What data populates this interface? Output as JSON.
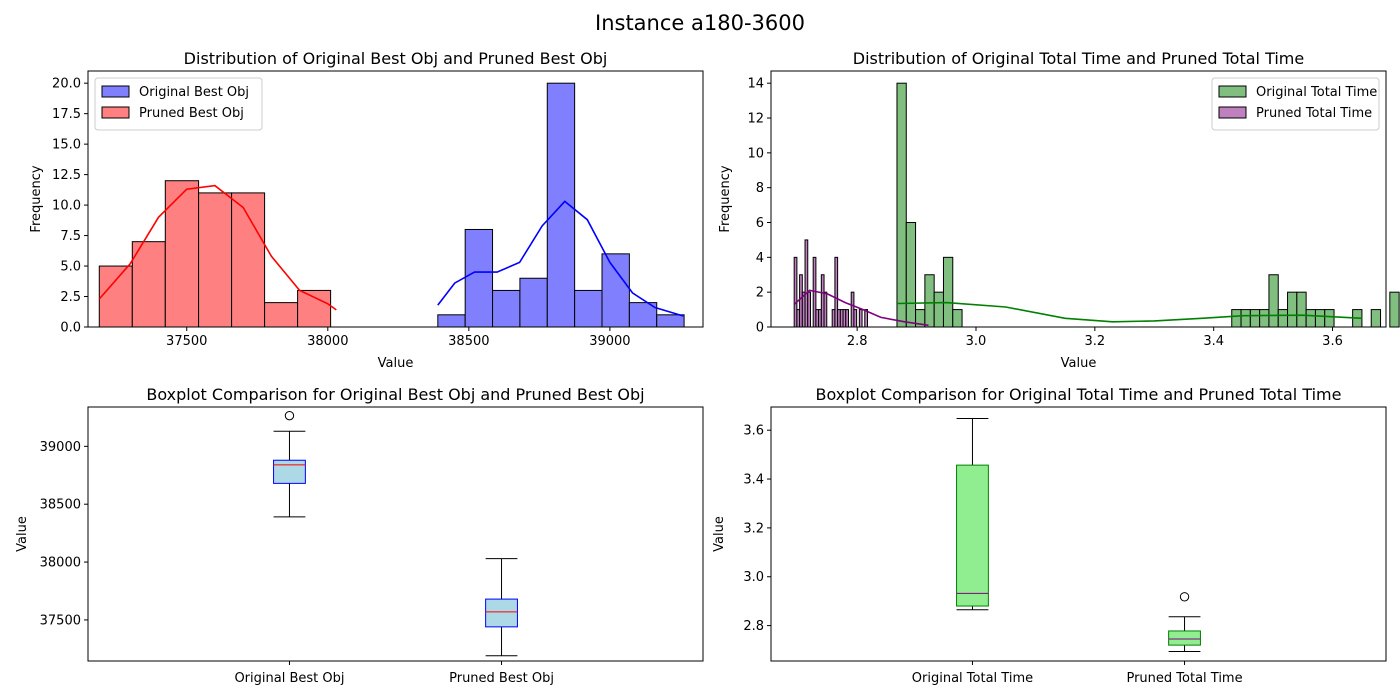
{
  "figure": {
    "suptitle": "Instance a180-3600"
  },
  "chart_data": [
    {
      "type": "histogram",
      "title": "Distribution of Original Best Obj and Pruned Best Obj",
      "xlabel": "Value",
      "ylabel": "Frequency",
      "xlim": [
        37150,
        39330
      ],
      "ylim": [
        0,
        21
      ],
      "xticks": [
        37500,
        38000,
        38500,
        39000
      ],
      "yticks": [
        0.0,
        2.5,
        5.0,
        7.5,
        10.0,
        12.5,
        15.0,
        17.5,
        20.0
      ],
      "legend_position": "upper left",
      "series": [
        {
          "name": "Pruned Best Obj",
          "fill": "#ff8080",
          "line": "#ff0000",
          "bin_edges": [
            37190,
            37307,
            37424,
            37542,
            37659,
            37776,
            37893,
            38010
          ],
          "counts": [
            5,
            7,
            12,
            11,
            11,
            2,
            3
          ],
          "kde": [
            [
              37190,
              2.3
            ],
            [
              37300,
              5.2
            ],
            [
              37400,
              9.0
            ],
            [
              37500,
              11.3
            ],
            [
              37600,
              11.6
            ],
            [
              37700,
              9.8
            ],
            [
              37800,
              5.8
            ],
            [
              37900,
              3.0
            ],
            [
              38000,
              1.9
            ],
            [
              38030,
              1.4
            ]
          ]
        },
        {
          "name": "Original Best Obj",
          "fill": "#8080ff",
          "line": "#0000ff",
          "bin_edges": [
            38390,
            38487,
            38584,
            38681,
            38778,
            38875,
            38972,
            39069,
            39166,
            39263
          ],
          "counts": [
            1,
            8,
            3,
            4,
            20,
            3,
            6,
            2,
            1
          ],
          "kde": [
            [
              38390,
              1.8
            ],
            [
              38450,
              3.6
            ],
            [
              38520,
              4.5
            ],
            [
              38600,
              4.5
            ],
            [
              38680,
              5.3
            ],
            [
              38760,
              8.3
            ],
            [
              38840,
              10.3
            ],
            [
              38920,
              8.8
            ],
            [
              39000,
              5.3
            ],
            [
              39080,
              2.8
            ],
            [
              39160,
              1.6
            ],
            [
              39260,
              0.9
            ]
          ]
        }
      ]
    },
    {
      "type": "histogram",
      "title": "Distribution of Original Total Time and Pruned Total Time",
      "xlabel": "Value",
      "ylabel": "Frequency",
      "xlim": [
        2.655,
        3.69
      ],
      "ylim": [
        0,
        14.7
      ],
      "xticks": [
        2.8,
        3.0,
        3.2,
        3.4,
        3.6
      ],
      "yticks": [
        0,
        2,
        4,
        6,
        8,
        10,
        12,
        14
      ],
      "legend_position": "upper right",
      "series": [
        {
          "name": "Original Total Time",
          "fill": "#80bf80",
          "line": "#008000",
          "bin_edges_start": 2.867,
          "bin_width": 0.01565,
          "counts": [
            14,
            6,
            1,
            3,
            2,
            4,
            1,
            0,
            0,
            0,
            0,
            0,
            0,
            0,
            0,
            0,
            0,
            0,
            0,
            0,
            0,
            0,
            0,
            0,
            0,
            0,
            0,
            0,
            0,
            0,
            0,
            0,
            0,
            0,
            0,
            0,
            1,
            1,
            1,
            1,
            3,
            1,
            2,
            2,
            1,
            1,
            1,
            0,
            0,
            1,
            0,
            1,
            0,
            2
          ],
          "kde": [
            [
              2.867,
              1.35
            ],
            [
              2.95,
              1.4
            ],
            [
              3.05,
              1.15
            ],
            [
              3.15,
              0.5
            ],
            [
              3.23,
              0.3
            ],
            [
              3.3,
              0.35
            ],
            [
              3.38,
              0.5
            ],
            [
              3.45,
              0.65
            ],
            [
              3.55,
              0.68
            ],
            [
              3.65,
              0.5
            ]
          ]
        },
        {
          "name": "Pruned Total Time",
          "fill": "#bf80bf",
          "line": "#800080",
          "bin_edges_start": 2.694,
          "bin_width": 0.00457,
          "counts": [
            4,
            1,
            3,
            2,
            5,
            2,
            0,
            4,
            1,
            1,
            3,
            2,
            0,
            0,
            1,
            4,
            1,
            1,
            1,
            1,
            0,
            2,
            1,
            0,
            1,
            0,
            1
          ],
          "kde": [
            [
              2.694,
              1.3
            ],
            [
              2.72,
              2.1
            ],
            [
              2.75,
              1.9
            ],
            [
              2.78,
              1.4
            ],
            [
              2.81,
              1.0
            ],
            [
              2.84,
              0.55
            ],
            [
              2.88,
              0.3
            ],
            [
              2.92,
              0.1
            ]
          ]
        }
      ]
    },
    {
      "type": "boxplot",
      "title": "Boxplot Comparison for Original Best Obj and Pruned Best Obj",
      "ylabel": "Value",
      "ylim": [
        37145,
        39340
      ],
      "yticks": [
        37500,
        38000,
        38500,
        39000
      ],
      "box_fill": "#add8e6",
      "box_edge": "#0000ff",
      "median_color": "#ff0000",
      "boxes": [
        {
          "label": "Original Best Obj",
          "whislo": 38390,
          "q1": 38680,
          "med": 38840,
          "q3": 38880,
          "whishi": 39130,
          "fliers": [
            39265
          ]
        },
        {
          "label": "Pruned Best Obj",
          "whislo": 37190,
          "q1": 37440,
          "med": 37570,
          "q3": 37680,
          "whishi": 38030,
          "fliers": []
        }
      ]
    },
    {
      "type": "boxplot",
      "title": "Boxplot Comparison for Original Total Time and Pruned Total Time",
      "ylabel": "Value",
      "ylim": [
        2.655,
        3.695
      ],
      "yticks": [
        2.8,
        3.0,
        3.2,
        3.4,
        3.6
      ],
      "box_fill": "#90ee90",
      "box_edge": "#008000",
      "median_color": "#800080",
      "boxes": [
        {
          "label": "Original Total Time",
          "whislo": 2.865,
          "q1": 2.88,
          "med": 2.932,
          "q3": 3.457,
          "whishi": 3.648,
          "fliers": []
        },
        {
          "label": "Pruned Total Time",
          "whislo": 2.694,
          "q1": 2.72,
          "med": 2.745,
          "q3": 2.778,
          "whishi": 2.836,
          "fliers": [
            2.918
          ]
        }
      ]
    }
  ]
}
